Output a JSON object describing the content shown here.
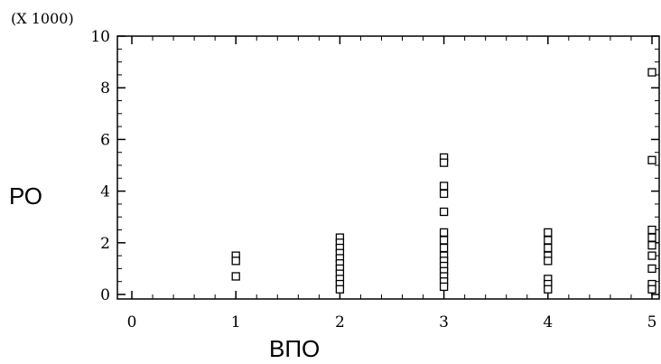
{
  "chart_data": {
    "type": "scatter",
    "multiplier_label": "(X 1000)",
    "xlabel": "ВПО",
    "ylabel": "РО",
    "xlim": [
      0,
      5
    ],
    "ylim": [
      0,
      10
    ],
    "x_ticks": [
      0,
      1,
      2,
      3,
      4,
      5
    ],
    "y_ticks": [
      0,
      2,
      4,
      6,
      8,
      10
    ],
    "grid": false,
    "marker": "open-square",
    "series": [
      {
        "points": [
          [
            1,
            1.5
          ],
          [
            1,
            1.3
          ],
          [
            1,
            0.7
          ],
          [
            2,
            2.2
          ],
          [
            2,
            2.0
          ],
          [
            2,
            1.8
          ],
          [
            2,
            1.6
          ],
          [
            2,
            1.4
          ],
          [
            2,
            1.2
          ],
          [
            2,
            1.0
          ],
          [
            2,
            0.8
          ],
          [
            2,
            0.6
          ],
          [
            2,
            0.4
          ],
          [
            2,
            0.2
          ],
          [
            3,
            5.3
          ],
          [
            3,
            5.1
          ],
          [
            3,
            4.2
          ],
          [
            3,
            3.9
          ],
          [
            3,
            3.2
          ],
          [
            3,
            2.4
          ],
          [
            3,
            2.1
          ],
          [
            3,
            1.8
          ],
          [
            3,
            1.5
          ],
          [
            3,
            1.3
          ],
          [
            3,
            1.1
          ],
          [
            3,
            0.9
          ],
          [
            3,
            0.7
          ],
          [
            3,
            0.5
          ],
          [
            3,
            0.3
          ],
          [
            4,
            2.4
          ],
          [
            4,
            2.1
          ],
          [
            4,
            1.8
          ],
          [
            4,
            1.5
          ],
          [
            4,
            1.3
          ],
          [
            4,
            0.6
          ],
          [
            4,
            0.4
          ],
          [
            4,
            0.2
          ],
          [
            5,
            8.6
          ],
          [
            5,
            5.2
          ],
          [
            5,
            2.5
          ],
          [
            5,
            2.2
          ],
          [
            5,
            1.9
          ],
          [
            5,
            1.5
          ],
          [
            5,
            1.0
          ],
          [
            5,
            0.4
          ],
          [
            5,
            0.2
          ]
        ]
      }
    ]
  }
}
